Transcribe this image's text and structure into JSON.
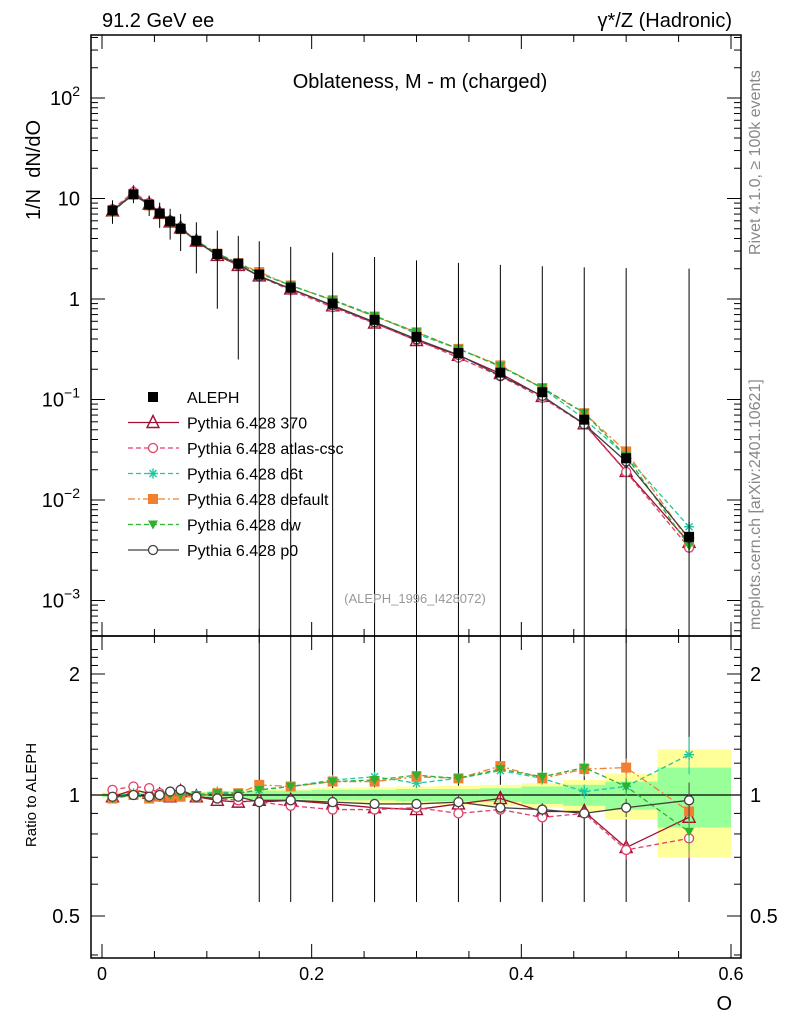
{
  "header": {
    "left": "91.2 GeV ee",
    "right": "γ*/Z (Hadronic)"
  },
  "side_labels": {
    "top": "Rivet 4.1.0, ≥ 100k events",
    "bottom": "mcplots.cern.ch [arXiv:2401.10621]"
  },
  "chart_data": {
    "type": "line",
    "title": "Oblateness, M - m (charged)",
    "analysis_tag": "(ALEPH_1996_I428072)",
    "xlabel": "O",
    "ylabel": "1/N  dN/dO",
    "ratio_ylabel": "Ratio to ALEPH",
    "xlim": [
      -0.02,
      0.6
    ],
    "ylim": [
      0.0005,
      400
    ],
    "ratio_ylim": [
      0.4,
      2.3
    ],
    "x_ticks": [
      "0",
      "0.2",
      "0.4",
      "0.6"
    ],
    "y_ticks": [
      {
        "base": "10",
        "exp": "−3"
      },
      {
        "base": "10",
        "exp": "−2"
      },
      {
        "base": "10",
        "exp": "−1"
      },
      {
        "base": "1",
        "exp": ""
      },
      {
        "base": "10",
        "exp": ""
      },
      {
        "base": "10",
        "exp": "2"
      }
    ],
    "ratio_ticks": [
      "0.5",
      "1",
      "2"
    ],
    "x": [
      0.01,
      0.03,
      0.045,
      0.055,
      0.065,
      0.075,
      0.09,
      0.11,
      0.13,
      0.15,
      0.18,
      0.22,
      0.26,
      0.3,
      0.34,
      0.38,
      0.42,
      0.46,
      0.5,
      0.56
    ],
    "data": {
      "name": "ALEPH",
      "values": [
        7.6,
        11.0,
        8.7,
        7.1,
        5.9,
        5.0,
        3.8,
        2.8,
        2.25,
        1.75,
        1.3,
        0.9,
        0.62,
        0.42,
        0.29,
        0.185,
        0.118,
        0.063,
        0.026,
        0.0043
      ],
      "band_inner": [
        0.01,
        0.01,
        0.015,
        0.015,
        0.015,
        0.015,
        0.015,
        0.02,
        0.02,
        0.025,
        0.025,
        0.03,
        0.03,
        0.035,
        0.035,
        0.04,
        0.05,
        0.06,
        0.08,
        0.17
      ],
      "band_outer": [
        0.015,
        0.015,
        0.02,
        0.02,
        0.02,
        0.02,
        0.02,
        0.025,
        0.025,
        0.03,
        0.035,
        0.04,
        0.045,
        0.05,
        0.055,
        0.06,
        0.07,
        0.09,
        0.13,
        0.3
      ]
    },
    "series": [
      {
        "name": "Pythia 6.428 370",
        "color": "#a01030",
        "marker": "triangle-open",
        "dash": "",
        "ratio": [
          0.99,
          1.03,
          1.01,
          1.0,
          0.99,
          1.02,
          0.99,
          0.97,
          0.96,
          0.97,
          0.97,
          0.95,
          0.93,
          0.92,
          0.95,
          0.98,
          0.91,
          0.91,
          0.74,
          0.88
        ]
      },
      {
        "name": "Pythia 6.428 atlas-csc",
        "color": "#e0406a",
        "marker": "circle-open",
        "dash": "5,3",
        "ratio": [
          1.03,
          1.05,
          1.04,
          1.01,
          1.01,
          1.01,
          0.99,
          0.98,
          0.97,
          0.96,
          0.94,
          0.92,
          0.92,
          0.93,
          0.9,
          0.92,
          0.88,
          0.9,
          0.73,
          0.78
        ]
      },
      {
        "name": "Pythia 6.428 d6t",
        "color": "#20c8a0",
        "marker": "star",
        "dash": "5,3",
        "ratio": [
          0.99,
          1.01,
          0.99,
          0.99,
          1.0,
          1.0,
          1.0,
          1.02,
          1.01,
          1.03,
          1.05,
          1.09,
          1.11,
          1.07,
          1.1,
          1.15,
          1.1,
          1.02,
          1.05,
          1.26
        ]
      },
      {
        "name": "Pythia 6.428 default",
        "color": "#f08030",
        "marker": "square",
        "dash": "7,3,2,3",
        "ratio": [
          0.98,
          1.0,
          0.98,
          0.99,
          0.99,
          0.99,
          0.99,
          1.01,
          1.01,
          1.06,
          1.05,
          1.08,
          1.08,
          1.11,
          1.1,
          1.18,
          1.1,
          1.16,
          1.17,
          0.91
        ]
      },
      {
        "name": "Pythia 6.428 dw",
        "color": "#30b030",
        "marker": "triangle-down",
        "dash": "5,3",
        "ratio": [
          0.98,
          1.0,
          0.98,
          0.99,
          1.0,
          1.0,
          1.0,
          1.01,
          1.01,
          1.03,
          1.05,
          1.08,
          1.09,
          1.12,
          1.1,
          1.16,
          1.11,
          1.17,
          1.05,
          0.81
        ]
      },
      {
        "name": "Pythia 6.428 p0",
        "color": "#404040",
        "marker": "circle-open",
        "dash": "",
        "ratio": [
          0.99,
          1.0,
          0.99,
          1.0,
          1.02,
          1.03,
          0.99,
          0.98,
          0.99,
          0.96,
          0.97,
          0.96,
          0.95,
          0.95,
          0.96,
          0.93,
          0.92,
          0.9,
          0.93,
          0.97
        ]
      }
    ]
  }
}
